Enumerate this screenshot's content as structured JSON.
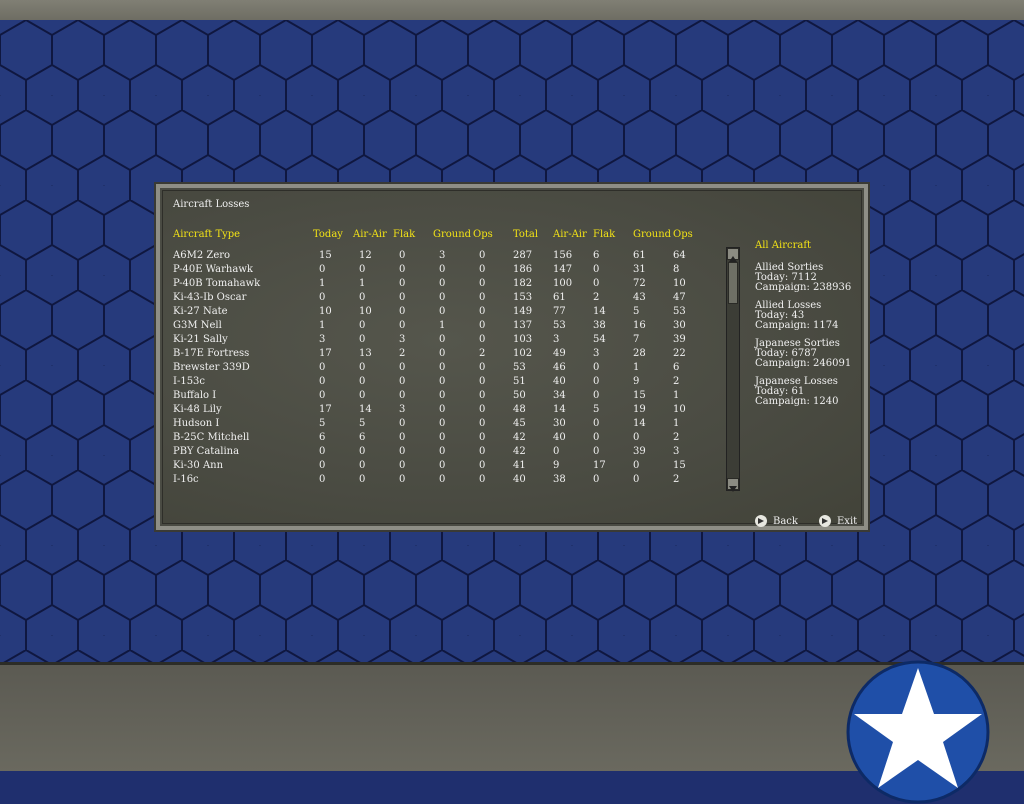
{
  "panel": {
    "title": "Aircraft Losses",
    "headers": [
      "Aircraft Type",
      "Today",
      "Air-Air",
      "Flak",
      "Ground",
      "Ops",
      "Total",
      "Air-Air",
      "Flak",
      "Ground",
      "Ops"
    ],
    "rows": [
      [
        "A6M2 Zero",
        "15",
        "12",
        "0",
        "3",
        "0",
        "287",
        "156",
        "6",
        "61",
        "64"
      ],
      [
        "P-40E Warhawk",
        "0",
        "0",
        "0",
        "0",
        "0",
        "186",
        "147",
        "0",
        "31",
        "8"
      ],
      [
        "P-40B Tomahawk",
        "1",
        "1",
        "0",
        "0",
        "0",
        "182",
        "100",
        "0",
        "72",
        "10"
      ],
      [
        "Ki-43-Ib Oscar",
        "0",
        "0",
        "0",
        "0",
        "0",
        "153",
        "61",
        "2",
        "43",
        "47"
      ],
      [
        "Ki-27 Nate",
        "10",
        "10",
        "0",
        "0",
        "0",
        "149",
        "77",
        "14",
        "5",
        "53"
      ],
      [
        "G3M Nell",
        "1",
        "0",
        "0",
        "1",
        "0",
        "137",
        "53",
        "38",
        "16",
        "30"
      ],
      [
        "Ki-21 Sally",
        "3",
        "0",
        "3",
        "0",
        "0",
        "103",
        "3",
        "54",
        "7",
        "39"
      ],
      [
        "B-17E Fortress",
        "17",
        "13",
        "2",
        "0",
        "2",
        "102",
        "49",
        "3",
        "28",
        "22"
      ],
      [
        "Brewster 339D",
        "0",
        "0",
        "0",
        "0",
        "0",
        "53",
        "46",
        "0",
        "1",
        "6"
      ],
      [
        "I-153c",
        "0",
        "0",
        "0",
        "0",
        "0",
        "51",
        "40",
        "0",
        "9",
        "2"
      ],
      [
        "Buffalo I",
        "0",
        "0",
        "0",
        "0",
        "0",
        "50",
        "34",
        "0",
        "15",
        "1"
      ],
      [
        "Ki-48 Lily",
        "17",
        "14",
        "3",
        "0",
        "0",
        "48",
        "14",
        "5",
        "19",
        "10"
      ],
      [
        "Hudson I",
        "5",
        "5",
        "0",
        "0",
        "0",
        "45",
        "30",
        "0",
        "14",
        "1"
      ],
      [
        "B-25C Mitchell",
        "6",
        "6",
        "0",
        "0",
        "0",
        "42",
        "40",
        "0",
        "0",
        "2"
      ],
      [
        "PBY Catalina",
        "0",
        "0",
        "0",
        "0",
        "0",
        "42",
        "0",
        "0",
        "39",
        "3"
      ],
      [
        "Ki-30 Ann",
        "0",
        "0",
        "0",
        "0",
        "0",
        "41",
        "9",
        "17",
        "0",
        "15"
      ],
      [
        "I-16c",
        "0",
        "0",
        "0",
        "0",
        "0",
        "40",
        "38",
        "0",
        "0",
        "2"
      ]
    ]
  },
  "summary": {
    "heading": "All Aircraft",
    "allied_sorties": {
      "label": "Allied Sorties",
      "today": "Today:   7112",
      "campaign": "Campaign: 238936"
    },
    "allied_losses": {
      "label": "Allied Losses",
      "today": "Today:   43",
      "campaign": "Campaign: 1174"
    },
    "japanese_sorties": {
      "label": "Japanese Sorties",
      "today": "Today:   6787",
      "campaign": "Campaign: 246091"
    },
    "japanese_losses": {
      "label": "Japanese Losses",
      "today": "Today:   61",
      "campaign": "Campaign: 1240"
    }
  },
  "buttons": {
    "back": "Back",
    "exit": "Exit"
  },
  "colors": {
    "header_yellow": "#f2e216",
    "background_blue": "#263a7c",
    "roundel_blue": "#1f4fa8"
  }
}
